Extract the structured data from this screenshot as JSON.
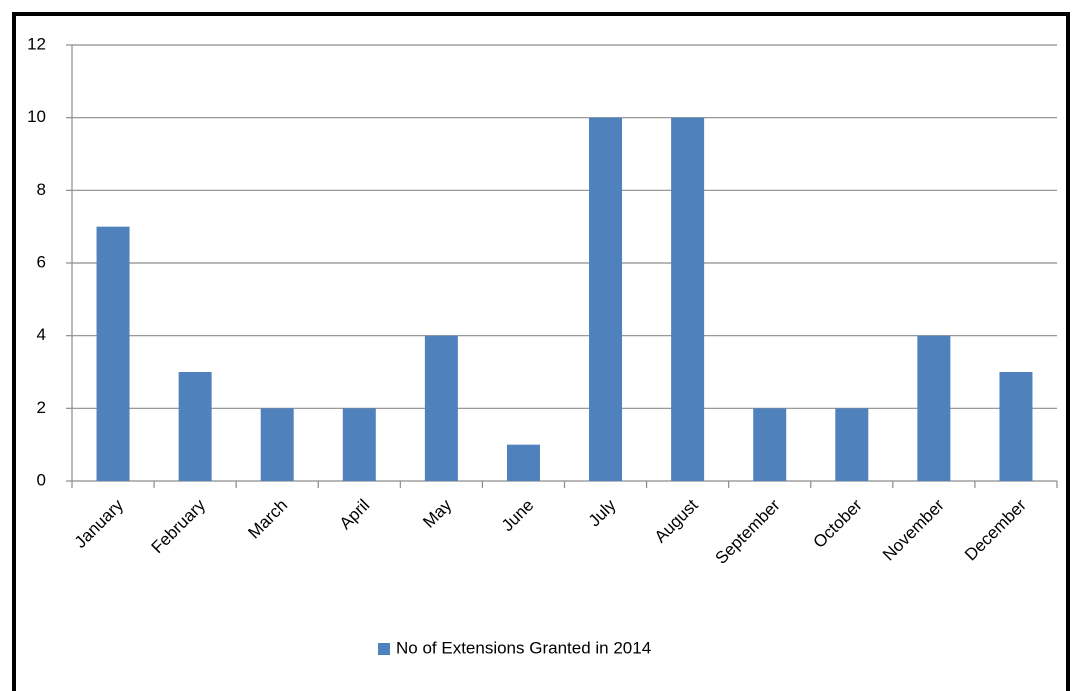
{
  "chart_data": {
    "type": "bar",
    "categories": [
      "January",
      "February",
      "March",
      "April",
      "May",
      "June",
      "July",
      "August",
      "September",
      "October",
      "November",
      "December"
    ],
    "series": [
      {
        "name": "No of Extensions Granted in 2014",
        "color": "#4f81bd",
        "values": [
          7,
          3,
          2,
          2,
          4,
          1,
          10,
          10,
          2,
          2,
          4,
          3
        ]
      }
    ],
    "ylim": [
      0,
      12
    ],
    "yticks": [
      0,
      2,
      4,
      6,
      8,
      10,
      12
    ],
    "grid": true,
    "legend": "bottom"
  }
}
